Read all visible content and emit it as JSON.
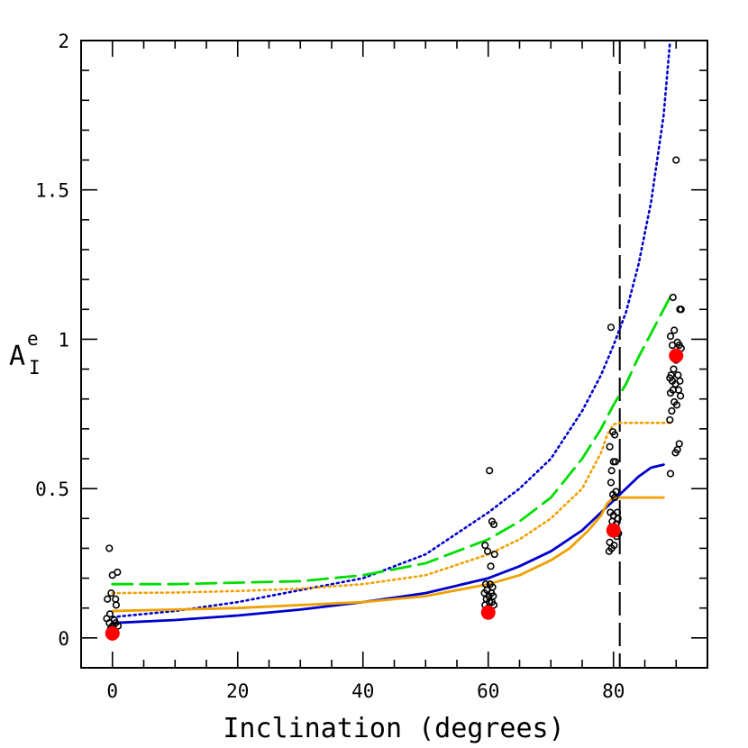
{
  "chart_data": {
    "type": "scatter",
    "xlabel": "Inclination (degrees)",
    "ylabel": {
      "main": "A",
      "sup": "e",
      "sub": "I"
    },
    "xlim": [
      -5,
      95
    ],
    "ylim": [
      -0.1,
      2.0
    ],
    "xticks": [
      0,
      20,
      40,
      60,
      80
    ],
    "xtick_labels": [
      "0",
      "20",
      "40",
      "60",
      "80"
    ],
    "yticks": [
      0,
      0.5,
      1,
      1.5,
      2
    ],
    "ytick_labels": [
      "0",
      "0.5",
      "1",
      "1.5",
      "2"
    ],
    "vline": {
      "x": 81,
      "style": "long-dashed",
      "color": "#000000"
    },
    "curves": [
      {
        "name": "blue-dotted",
        "color": "#0000cc",
        "style": "dotted",
        "x": [
          0,
          10,
          20,
          30,
          40,
          50,
          60,
          65,
          70,
          75,
          78,
          80,
          82,
          84,
          86,
          88,
          89
        ],
        "y": [
          0.07,
          0.09,
          0.12,
          0.16,
          0.2,
          0.28,
          0.42,
          0.5,
          0.6,
          0.76,
          0.88,
          0.98,
          1.09,
          1.25,
          1.46,
          1.75,
          1.99
        ]
      },
      {
        "name": "green-dashed",
        "color": "#00dd00",
        "style": "dashed",
        "x": [
          0,
          10,
          20,
          30,
          40,
          50,
          60,
          65,
          70,
          75,
          78,
          80,
          82,
          84,
          86,
          88,
          89
        ],
        "y": [
          0.18,
          0.18,
          0.185,
          0.19,
          0.21,
          0.25,
          0.33,
          0.39,
          0.47,
          0.6,
          0.7,
          0.78,
          0.85,
          0.94,
          1.02,
          1.1,
          1.14
        ]
      },
      {
        "name": "orange-dotted",
        "color": "#f0a000",
        "style": "dotted",
        "x": [
          0,
          10,
          20,
          30,
          40,
          50,
          60,
          65,
          70,
          75,
          78,
          79,
          80,
          81,
          82,
          84,
          86,
          88,
          89
        ],
        "y": [
          0.15,
          0.152,
          0.157,
          0.165,
          0.18,
          0.21,
          0.28,
          0.33,
          0.4,
          0.5,
          0.62,
          0.68,
          0.715,
          0.72,
          0.72,
          0.72,
          0.72,
          0.72,
          0.72
        ]
      },
      {
        "name": "blue-solid",
        "color": "#0000cc",
        "style": "solid",
        "x": [
          0,
          10,
          20,
          30,
          40,
          50,
          60,
          65,
          70,
          75,
          78,
          80,
          82,
          84,
          86,
          88
        ],
        "y": [
          0.05,
          0.06,
          0.075,
          0.095,
          0.12,
          0.15,
          0.2,
          0.24,
          0.29,
          0.36,
          0.42,
          0.46,
          0.5,
          0.54,
          0.57,
          0.58
        ]
      },
      {
        "name": "orange-solid",
        "color": "#f0a000",
        "style": "solid",
        "x": [
          0,
          10,
          20,
          30,
          40,
          50,
          60,
          65,
          70,
          73,
          76,
          78,
          79,
          80,
          81,
          82,
          84,
          86,
          88
        ],
        "y": [
          0.09,
          0.095,
          0.1,
          0.11,
          0.12,
          0.14,
          0.18,
          0.21,
          0.26,
          0.3,
          0.36,
          0.41,
          0.45,
          0.47,
          0.47,
          0.47,
          0.47,
          0.47,
          0.47
        ]
      }
    ],
    "points": [
      {
        "x": -0.5,
        "y": 0.3
      },
      {
        "x": 0.0,
        "y": 0.21
      },
      {
        "x": 0.8,
        "y": 0.22
      },
      {
        "x": -0.2,
        "y": 0.15
      },
      {
        "x": 0.5,
        "y": 0.13
      },
      {
        "x": -0.8,
        "y": 0.13
      },
      {
        "x": 0.6,
        "y": 0.11
      },
      {
        "x": -0.4,
        "y": 0.08
      },
      {
        "x": -0.9,
        "y": 0.065
      },
      {
        "x": 0.3,
        "y": 0.06
      },
      {
        "x": -0.5,
        "y": 0.05
      },
      {
        "x": 0.0,
        "y": 0.04
      },
      {
        "x": 0.5,
        "y": 0.05
      },
      {
        "x": 0.9,
        "y": 0.04
      },
      {
        "x": -0.3,
        "y": 0.03
      },
      {
        "x": 0.2,
        "y": 0.03
      },
      {
        "x": 60.2,
        "y": 0.56
      },
      {
        "x": 60.6,
        "y": 0.39
      },
      {
        "x": 60.9,
        "y": 0.38
      },
      {
        "x": 59.5,
        "y": 0.31
      },
      {
        "x": 59.9,
        "y": 0.29
      },
      {
        "x": 61.0,
        "y": 0.28
      },
      {
        "x": 60.4,
        "y": 0.24
      },
      {
        "x": 59.6,
        "y": 0.18
      },
      {
        "x": 60.3,
        "y": 0.18
      },
      {
        "x": 60.7,
        "y": 0.17
      },
      {
        "x": 59.8,
        "y": 0.16
      },
      {
        "x": 60.5,
        "y": 0.15
      },
      {
        "x": 59.4,
        "y": 0.15
      },
      {
        "x": 60.1,
        "y": 0.14
      },
      {
        "x": 60.8,
        "y": 0.14
      },
      {
        "x": 59.7,
        "y": 0.13
      },
      {
        "x": 60.2,
        "y": 0.12
      },
      {
        "x": 60.6,
        "y": 0.12
      },
      {
        "x": 59.5,
        "y": 0.11
      },
      {
        "x": 60.9,
        "y": 0.11
      },
      {
        "x": 60.0,
        "y": 0.1
      },
      {
        "x": 79.6,
        "y": 1.04
      },
      {
        "x": 79.9,
        "y": 0.69
      },
      {
        "x": 80.2,
        "y": 0.68
      },
      {
        "x": 79.4,
        "y": 0.64
      },
      {
        "x": 80.0,
        "y": 0.59
      },
      {
        "x": 80.3,
        "y": 0.59
      },
      {
        "x": 79.7,
        "y": 0.56
      },
      {
        "x": 79.6,
        "y": 0.52
      },
      {
        "x": 80.4,
        "y": 0.49
      },
      {
        "x": 79.9,
        "y": 0.48
      },
      {
        "x": 80.2,
        "y": 0.47
      },
      {
        "x": 79.5,
        "y": 0.42
      },
      {
        "x": 80.6,
        "y": 0.42
      },
      {
        "x": 80.0,
        "y": 0.41
      },
      {
        "x": 80.7,
        "y": 0.4
      },
      {
        "x": 79.8,
        "y": 0.39
      },
      {
        "x": 80.4,
        "y": 0.38
      },
      {
        "x": 79.6,
        "y": 0.37
      },
      {
        "x": 80.8,
        "y": 0.35
      },
      {
        "x": 80.5,
        "y": 0.34
      },
      {
        "x": 79.4,
        "y": 0.32
      },
      {
        "x": 80.1,
        "y": 0.31
      },
      {
        "x": 79.7,
        "y": 0.3
      },
      {
        "x": 79.3,
        "y": 0.29
      },
      {
        "x": 90.0,
        "y": 1.6
      },
      {
        "x": 89.5,
        "y": 1.14
      },
      {
        "x": 90.6,
        "y": 1.1
      },
      {
        "x": 90.8,
        "y": 1.1
      },
      {
        "x": 89.7,
        "y": 1.03
      },
      {
        "x": 89.1,
        "y": 1.01
      },
      {
        "x": 90.2,
        "y": 0.99
      },
      {
        "x": 89.4,
        "y": 0.98
      },
      {
        "x": 90.5,
        "y": 0.98
      },
      {
        "x": 90.8,
        "y": 0.97
      },
      {
        "x": 89.8,
        "y": 0.95
      },
      {
        "x": 90.0,
        "y": 0.93
      },
      {
        "x": 89.6,
        "y": 0.9
      },
      {
        "x": 89.2,
        "y": 0.88
      },
      {
        "x": 90.3,
        "y": 0.88
      },
      {
        "x": 89.0,
        "y": 0.87
      },
      {
        "x": 89.4,
        "y": 0.86
      },
      {
        "x": 90.6,
        "y": 0.86
      },
      {
        "x": 89.9,
        "y": 0.85
      },
      {
        "x": 89.5,
        "y": 0.83
      },
      {
        "x": 90.4,
        "y": 0.83
      },
      {
        "x": 89.1,
        "y": 0.82
      },
      {
        "x": 90.7,
        "y": 0.81
      },
      {
        "x": 89.7,
        "y": 0.79
      },
      {
        "x": 90.1,
        "y": 0.78
      },
      {
        "x": 89.3,
        "y": 0.76
      },
      {
        "x": 89.0,
        "y": 0.73
      },
      {
        "x": 90.5,
        "y": 0.65
      },
      {
        "x": 90.2,
        "y": 0.63
      },
      {
        "x": 89.9,
        "y": 0.62
      },
      {
        "x": 89.1,
        "y": 0.55
      }
    ],
    "means": [
      {
        "x": 0,
        "y": 0.015
      },
      {
        "x": 60,
        "y": 0.085
      },
      {
        "x": 80,
        "y": 0.36
      },
      {
        "x": 90,
        "y": 0.945
      }
    ],
    "colors": {
      "points": "#000000",
      "means": "#ff0000"
    }
  }
}
